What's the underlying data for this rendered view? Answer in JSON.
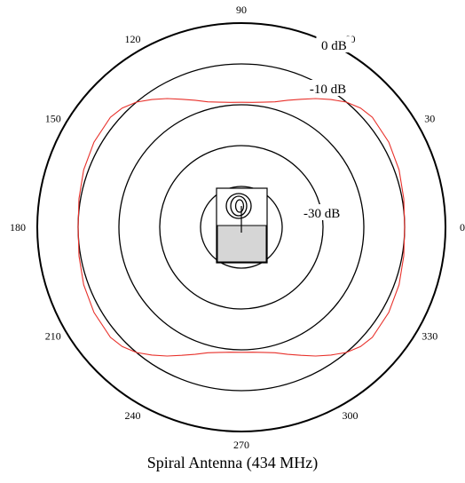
{
  "chart_data": {
    "type": "polar",
    "title": "Spiral Antenna (434 MHz)",
    "angle_ticks": [
      "90",
      "60",
      "30",
      "0",
      "330",
      "300",
      "270",
      "240",
      "210",
      "180",
      "150",
      "120"
    ],
    "angle_tick_degrees": [
      90,
      60,
      30,
      0,
      330,
      300,
      270,
      240,
      210,
      180,
      150,
      120
    ],
    "rings": [
      {
        "label": "0 dB",
        "value": 0
      },
      {
        "label": "-10 dB",
        "value": -10
      },
      {
        "label": "",
        "value": -20
      },
      {
        "label": "-30 dB",
        "value": -30
      },
      {
        "label": "",
        "value": -40
      }
    ],
    "r_range_db": [
      -50,
      0
    ],
    "series": [
      {
        "color": "#e8302a",
        "angles": [
          0,
          10,
          20,
          30,
          40,
          45,
          50,
          55,
          60,
          65,
          70,
          75,
          80,
          85,
          90,
          95,
          100,
          105,
          110,
          115,
          120,
          125,
          130,
          135,
          140,
          150,
          160,
          170,
          180,
          190,
          200,
          210,
          220,
          225,
          230,
          235,
          240,
          245,
          250,
          255,
          260,
          265,
          270,
          275,
          280,
          285,
          290,
          295,
          300,
          305,
          310,
          315,
          320,
          330,
          340,
          350,
          360
        ],
        "values": [
          -10,
          -9.6,
          -8.9,
          -8.3,
          -8.1,
          -8.7,
          -10,
          -11.8,
          -13.6,
          -15.4,
          -16.9,
          -18.2,
          -18.9,
          -19.3,
          -19.4,
          -19.3,
          -18.9,
          -18.2,
          -16.9,
          -15.4,
          -13.6,
          -11.8,
          -10,
          -8.7,
          -8.1,
          -8.3,
          -8.9,
          -9.6,
          -10,
          -9.6,
          -8.9,
          -8.3,
          -8.1,
          -8.7,
          -10,
          -11.8,
          -13.6,
          -15.4,
          -16.9,
          -18.2,
          -18.9,
          -19.3,
          -19.4,
          -19.3,
          -18.9,
          -18.2,
          -16.9,
          -15.4,
          -13.6,
          -11.8,
          -10,
          -8.7,
          -8.1,
          -8.3,
          -8.9,
          -9.6,
          -10
        ]
      }
    ],
    "grid": true
  }
}
